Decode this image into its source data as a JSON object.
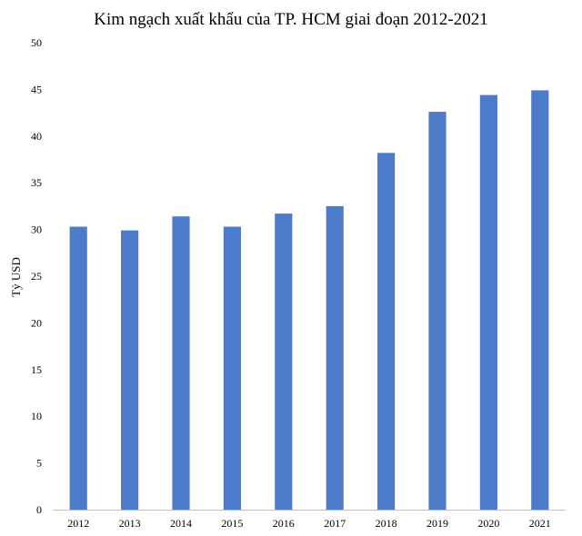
{
  "chart_data": {
    "type": "bar",
    "title": "Kim ngạch xuất khẩu của TP. HCM giai đoạn 2012-2021",
    "xlabel": "",
    "ylabel": "Tỷ USD",
    "categories": [
      "2012",
      "2013",
      "2014",
      "2015",
      "2016",
      "2017",
      "2018",
      "2019",
      "2020",
      "2021"
    ],
    "values": [
      30.3,
      29.9,
      31.4,
      30.3,
      31.7,
      32.5,
      38.2,
      42.6,
      44.4,
      44.9
    ],
    "ylim": [
      0,
      50
    ],
    "yticks": [
      0,
      5,
      10,
      15,
      20,
      25,
      30,
      35,
      40,
      45,
      50
    ],
    "grid": false,
    "legend": "none",
    "bar_color": "#4e7bc9",
    "axis_color": "#bfbfbf"
  }
}
